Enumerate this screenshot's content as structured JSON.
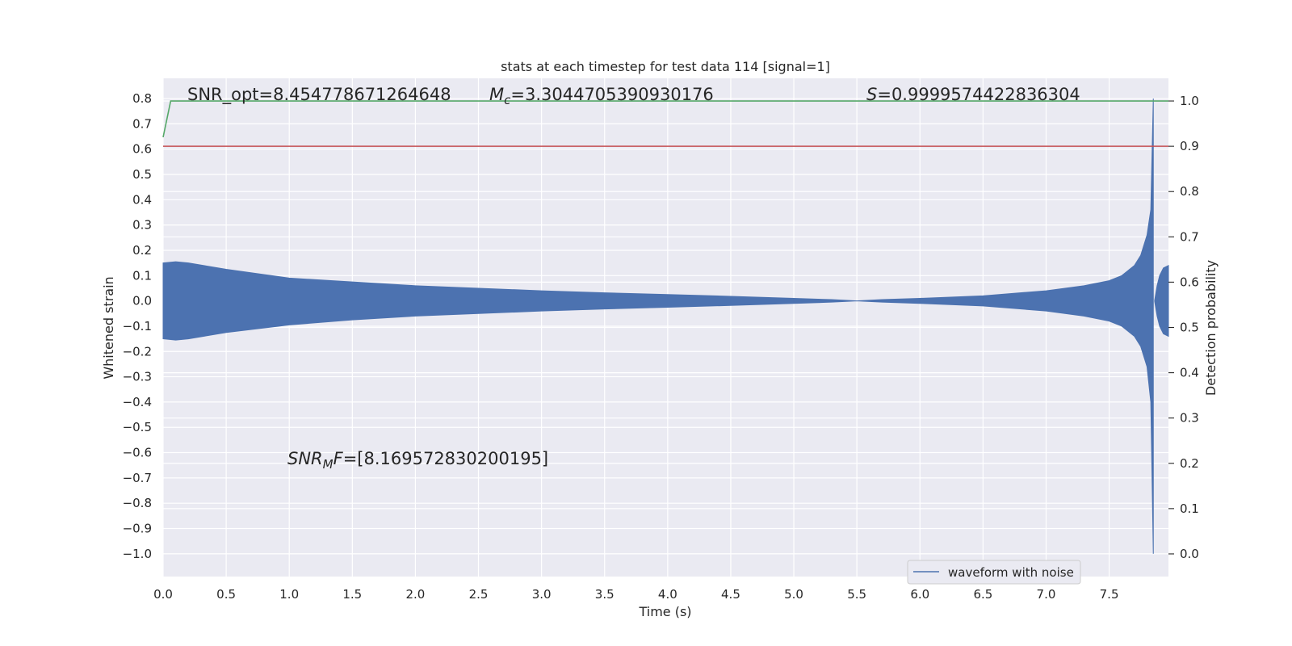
{
  "chart_data": {
    "type": "line",
    "title": "stats at each timestep for test data 114 [signal=1]",
    "xlabel": "Time (s)",
    "ylabel_left": "Whitened strain",
    "ylabel_right": "Detection probability",
    "xlim": [
      0.0,
      7.97
    ],
    "ylim_left": [
      -1.09,
      0.88
    ],
    "ylim_right": [
      -0.05,
      1.05
    ],
    "xticks": [
      "0.0",
      "0.5",
      "1.0",
      "1.5",
      "2.0",
      "2.5",
      "3.0",
      "3.5",
      "4.0",
      "4.5",
      "5.0",
      "5.5",
      "6.0",
      "6.5",
      "7.0",
      "7.5"
    ],
    "yticks_left": [
      "0.8",
      "0.7",
      "0.6",
      "0.5",
      "0.4",
      "0.3",
      "0.2",
      "0.1",
      "0.0",
      "−0.1",
      "−0.2",
      "−0.3",
      "−0.4",
      "−0.5",
      "−0.6",
      "−0.7",
      "−0.8",
      "−0.9",
      "−1.0"
    ],
    "yticks_right": [
      "1.0",
      "0.9",
      "0.8",
      "0.7",
      "0.6",
      "0.5",
      "0.4",
      "0.3",
      "0.2",
      "0.1",
      "0.0"
    ],
    "grid": true,
    "background": "#eaeaf2",
    "legend": {
      "placement": "lower-right",
      "entries": [
        "waveform with noise"
      ]
    },
    "annotations": {
      "snr_opt": "SNR_opt=8.454778671264648",
      "mc_symbol": "M",
      "mc_sub": "c",
      "mc_value": "=3.3044705390930176",
      "s_symbol": "S",
      "s_value": "=0.9999574422836304",
      "snrmf_symbol": "SNR",
      "snrmf_sub": "M",
      "snrmf_f": "F",
      "snrmf_value": "=[8.169572830200195]"
    },
    "series": [
      {
        "name": "waveform with noise",
        "axis": "left",
        "color": "#4c72b0",
        "envelope": {
          "t": [
            0.0,
            0.1,
            0.2,
            0.5,
            1.0,
            1.5,
            2.0,
            2.5,
            3.0,
            3.5,
            4.0,
            4.5,
            5.0,
            5.3,
            5.5,
            5.7,
            6.0,
            6.5,
            7.0,
            7.3,
            7.5,
            7.6,
            7.7,
            7.75,
            7.8,
            7.83,
            7.85
          ],
          "upper": [
            0.15,
            0.155,
            0.15,
            0.125,
            0.09,
            0.075,
            0.06,
            0.05,
            0.04,
            0.032,
            0.025,
            0.018,
            0.01,
            0.005,
            0.0,
            0.005,
            0.01,
            0.02,
            0.04,
            0.06,
            0.08,
            0.1,
            0.14,
            0.18,
            0.26,
            0.36,
            0.8
          ],
          "lower": [
            -0.15,
            -0.155,
            -0.15,
            -0.125,
            -0.095,
            -0.075,
            -0.06,
            -0.05,
            -0.04,
            -0.032,
            -0.025,
            -0.018,
            -0.01,
            -0.005,
            0.0,
            -0.005,
            -0.01,
            -0.02,
            -0.04,
            -0.06,
            -0.08,
            -0.1,
            -0.14,
            -0.18,
            -0.26,
            -0.4,
            -1.0
          ]
        },
        "ringdown": {
          "t": [
            7.86,
            7.88,
            7.9,
            7.93,
            7.97
          ],
          "upper": [
            0.0,
            0.06,
            0.1,
            0.13,
            0.14
          ],
          "lower": [
            0.0,
            -0.06,
            -0.1,
            -0.13,
            -0.14
          ]
        }
      },
      {
        "name": "",
        "axis": "right",
        "color": "#55a868",
        "x": [
          0.0,
          0.06,
          7.97
        ],
        "y": [
          0.92,
          1.0,
          1.0
        ]
      },
      {
        "name": "",
        "axis": "right",
        "color": "#c44e52",
        "x": [
          0.0,
          7.97
        ],
        "y": [
          0.9,
          0.9
        ]
      }
    ]
  }
}
